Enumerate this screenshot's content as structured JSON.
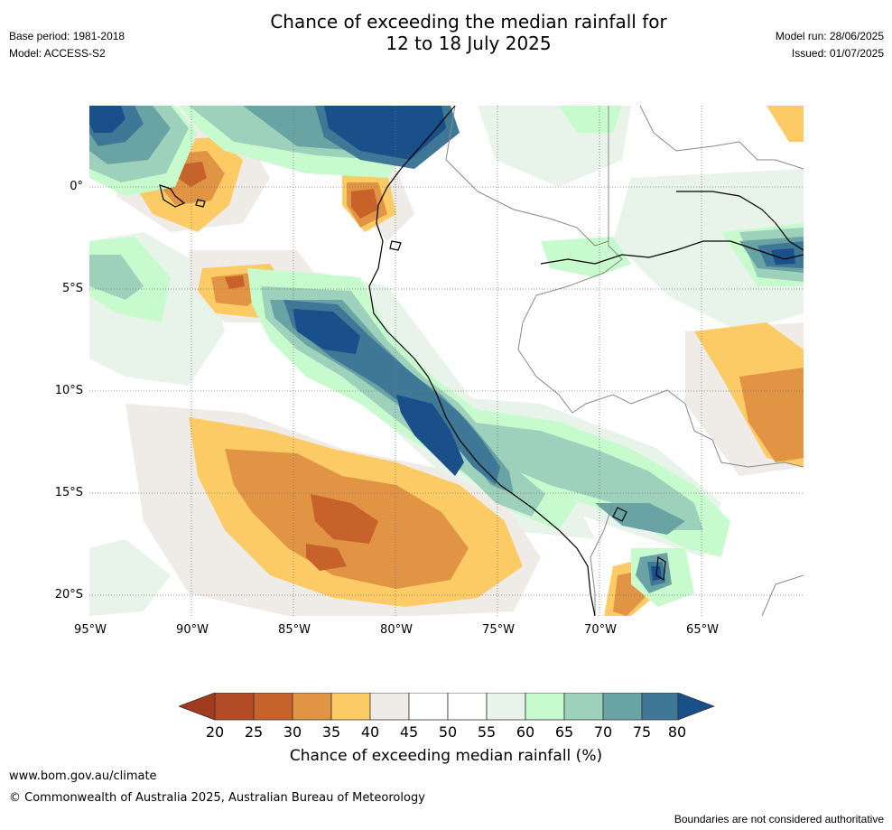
{
  "header": {
    "title_line1": "Chance of exceeding the median rainfall for",
    "title_line2": "12 to 18 July 2025",
    "base_period": "Base period: 1981-2018",
    "model": "Model: ACCESS-S2",
    "model_run": "Model run: 28/06/2025",
    "issued": "Issued: 01/07/2025"
  },
  "map": {
    "lat_labels": [
      "0°",
      "5°S",
      "10°S",
      "15°S",
      "20°S"
    ],
    "lon_labels": [
      "95°W",
      "90°W",
      "85°W",
      "80°W",
      "75°W",
      "70°W",
      "65°W"
    ],
    "colors": {
      "c20": "#a23a1e",
      "c25": "#b34b26",
      "c30": "#c8622b",
      "c35": "#e09444",
      "c40": "#fdcb66",
      "c45": "#efebe6",
      "c50": "#ffffff",
      "c55": "#ffffff",
      "c60": "#e8f4ea",
      "c65": "#c7fbce",
      "c70": "#9ed1bc",
      "c75": "#6aa3a3",
      "c80": "#3f7896",
      "c85": "#1a508a"
    }
  },
  "colorbar": {
    "ticks": [
      "20",
      "25",
      "30",
      "35",
      "40",
      "45",
      "50",
      "55",
      "60",
      "65",
      "70",
      "75",
      "80"
    ],
    "bin_colors": [
      "#a23a1e",
      "#b34b26",
      "#c8622b",
      "#e09444",
      "#fdcb66",
      "#efebe6",
      "#ffffff",
      "#ffffff",
      "#e8f4ea",
      "#c7fbce",
      "#9ed1bc",
      "#6aa3a3",
      "#3f7896",
      "#1a508a"
    ],
    "label": "Chance of exceeding median rainfall (%)"
  },
  "footer": {
    "url": "www.bom.gov.au/climate",
    "copyright": "© Commonwealth of Australia 2025, Australian Bureau of Meteorology",
    "disclaimer": "Boundaries are not considered authoritative"
  }
}
